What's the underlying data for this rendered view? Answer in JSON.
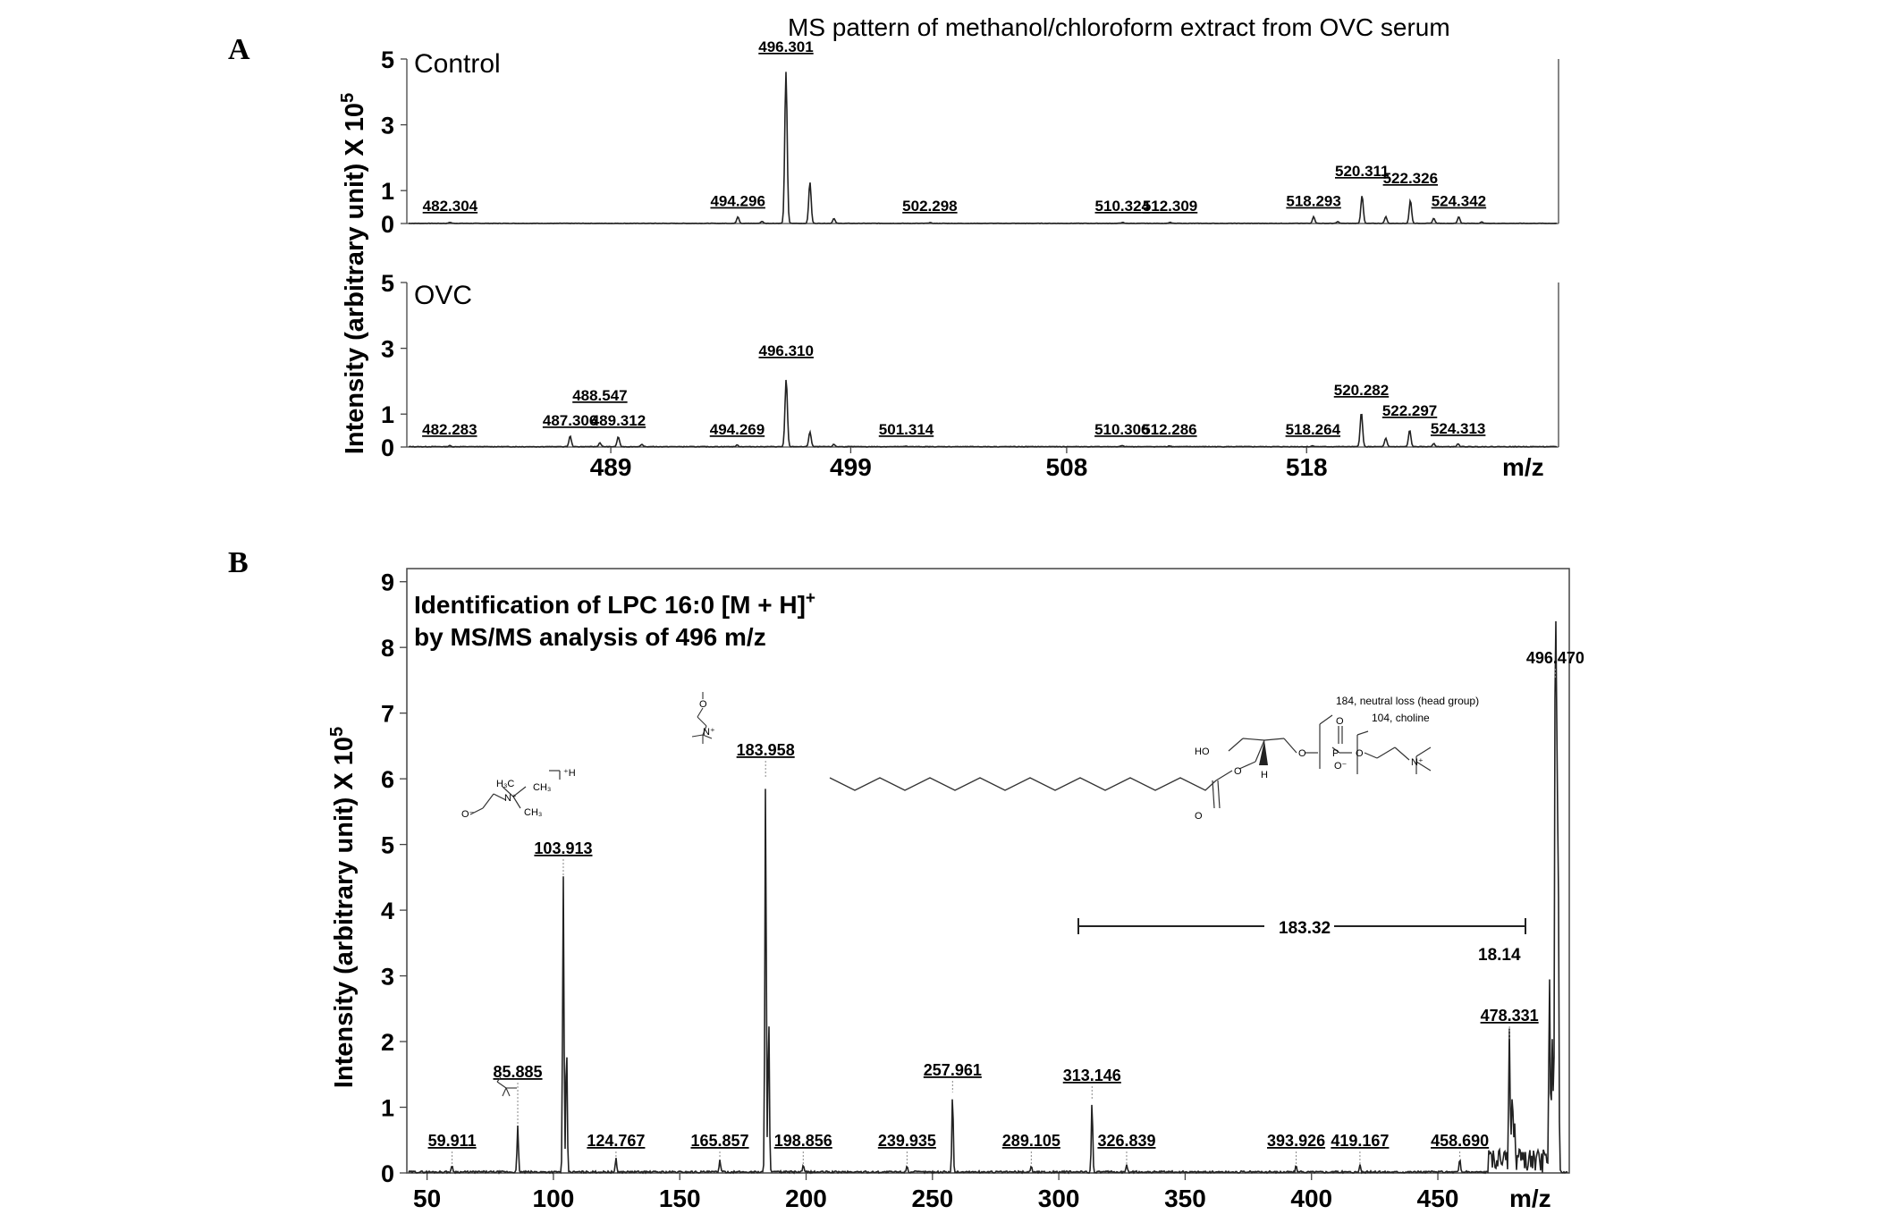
{
  "figure": {
    "panel_a_label": "A",
    "panel_b_label": "B"
  },
  "chart_data": [
    {
      "type": "line",
      "panel": "A",
      "title": "MS pattern of methanol/chloroform extract from OVC serum",
      "ylabel": "Intensity (arbitrary unit) X 10",
      "ylabel_sup": "5",
      "xlabel": "m/z",
      "xticks": [
        489,
        499,
        508,
        518
      ],
      "xlim": [
        480.5,
        528.5
      ],
      "ylim": [
        0,
        5
      ],
      "yticks_labels": [
        "5",
        "3",
        "1",
        "0"
      ],
      "ytick_values": [
        5,
        3,
        1,
        0
      ],
      "series": [
        {
          "name": "Control",
          "baseline_noise": 0.01,
          "peaks": [
            {
              "x": 482.304,
              "y": 0.03,
              "label": "482.304",
              "labeled": true
            },
            {
              "x": 494.296,
              "y": 0.2,
              "label": "494.296",
              "labeled": true
            },
            {
              "x": 495.3,
              "y": 0.06,
              "labeled": false
            },
            {
              "x": 496.301,
              "y": 4.6,
              "label": "496.301",
              "labeled": true
            },
            {
              "x": 497.3,
              "y": 1.25,
              "labeled": false
            },
            {
              "x": 498.3,
              "y": 0.15,
              "labeled": false
            },
            {
              "x": 502.298,
              "y": 0.02,
              "label": "502.298",
              "labeled": true
            },
            {
              "x": 510.324,
              "y": 0.03,
              "label": "510.324",
              "labeled": true
            },
            {
              "x": 512.309,
              "y": 0.03,
              "label": "512.309",
              "labeled": true
            },
            {
              "x": 518.293,
              "y": 0.2,
              "label": "518.293",
              "labeled": true
            },
            {
              "x": 519.3,
              "y": 0.05,
              "labeled": false
            },
            {
              "x": 520.311,
              "y": 0.85,
              "label": "520.311",
              "labeled": true
            },
            {
              "x": 521.3,
              "y": 0.2,
              "labeled": false
            },
            {
              "x": 522.326,
              "y": 0.7,
              "label": "522.326",
              "labeled": true
            },
            {
              "x": 523.3,
              "y": 0.15,
              "labeled": false
            },
            {
              "x": 524.342,
              "y": 0.2,
              "label": "524.342",
              "labeled": true
            },
            {
              "x": 525.3,
              "y": 0.04,
              "labeled": false
            }
          ]
        },
        {
          "name": "OVC",
          "baseline_noise": 0.02,
          "peaks": [
            {
              "x": 482.283,
              "y": 0.03,
              "label": "482.283",
              "labeled": true
            },
            {
              "x": 487.306,
              "y": 0.32,
              "label": "487.306",
              "labeled": true
            },
            {
              "x": 488.547,
              "y": 0.12,
              "label": "488.547",
              "labeled": true
            },
            {
              "x": 489.312,
              "y": 0.3,
              "label": "489.312",
              "labeled": true
            },
            {
              "x": 490.3,
              "y": 0.06,
              "labeled": false
            },
            {
              "x": 494.269,
              "y": 0.05,
              "label": "494.269",
              "labeled": true
            },
            {
              "x": 496.31,
              "y": 2.05,
              "label": "496.310",
              "labeled": true
            },
            {
              "x": 497.3,
              "y": 0.45,
              "labeled": false
            },
            {
              "x": 498.3,
              "y": 0.07,
              "labeled": false
            },
            {
              "x": 501.314,
              "y": 0.02,
              "label": "501.314",
              "labeled": true
            },
            {
              "x": 510.306,
              "y": 0.03,
              "label": "510.306",
              "labeled": true
            },
            {
              "x": 512.286,
              "y": 0.03,
              "label": "512.286",
              "labeled": true
            },
            {
              "x": 518.264,
              "y": 0.03,
              "label": "518.264",
              "labeled": true
            },
            {
              "x": 520.282,
              "y": 1.05,
              "label": "520.282",
              "labeled": true
            },
            {
              "x": 521.3,
              "y": 0.25,
              "labeled": false
            },
            {
              "x": 522.297,
              "y": 0.5,
              "label": "522.297",
              "labeled": true
            },
            {
              "x": 523.3,
              "y": 0.1,
              "labeled": false
            },
            {
              "x": 524.313,
              "y": 0.08,
              "label": "524.313",
              "labeled": true
            }
          ]
        }
      ]
    },
    {
      "type": "line",
      "panel": "B",
      "title_line1": "Identification of  LPC 16:0 [M + H]",
      "title_sup": "+",
      "title_line2": "by MS/MS analysis of 496 m/z",
      "ylabel": "Intensity (arbitrary unit) X 10",
      "ylabel_sup": "5",
      "xlabel": "m/z",
      "xticks": [
        50,
        100,
        150,
        200,
        250,
        300,
        350,
        400,
        450
      ],
      "xlim": [
        42,
        502
      ],
      "yticks": [
        0,
        1,
        2,
        3,
        4,
        5,
        6,
        7,
        8,
        9
      ],
      "ylim": [
        0,
        9.2
      ],
      "peaks": [
        {
          "x": 59.911,
          "y": 0.1,
          "label": "59.911",
          "labeled": true
        },
        {
          "x": 85.885,
          "y": 0.7,
          "label": "85.885",
          "labeled": true
        },
        {
          "x": 103.913,
          "y": 4.5,
          "label": "103.913",
          "labeled": true
        },
        {
          "x": 105.2,
          "y": 2.0,
          "labeled": false
        },
        {
          "x": 124.767,
          "y": 0.2,
          "label": "124.767",
          "labeled": true
        },
        {
          "x": 165.857,
          "y": 0.2,
          "label": "165.857",
          "labeled": true
        },
        {
          "x": 183.958,
          "y": 6.0,
          "label": "183.958",
          "labeled": true
        },
        {
          "x": 185.2,
          "y": 2.4,
          "labeled": false
        },
        {
          "x": 198.856,
          "y": 0.1,
          "label": "198.856",
          "labeled": true
        },
        {
          "x": 239.935,
          "y": 0.1,
          "label": "239.935",
          "labeled": true
        },
        {
          "x": 257.961,
          "y": 1.2,
          "label": "257.961",
          "labeled": true
        },
        {
          "x": 289.105,
          "y": 0.1,
          "label": "289.105",
          "labeled": true
        },
        {
          "x": 313.146,
          "y": 1.1,
          "label": "313.146",
          "labeled": true
        },
        {
          "x": 326.839,
          "y": 0.1,
          "label": "326.839",
          "labeled": true
        },
        {
          "x": 393.926,
          "y": 0.1,
          "label": "393.926",
          "labeled": true
        },
        {
          "x": 419.167,
          "y": 0.1,
          "label": "419.167",
          "labeled": true
        },
        {
          "x": 458.69,
          "y": 0.2,
          "label": "458.690",
          "labeled": true
        },
        {
          "x": 478.331,
          "y": 2.0,
          "label": "478.331",
          "labeled": true
        },
        {
          "x": 479.5,
          "y": 1.1,
          "labeled": false
        },
        {
          "x": 480.5,
          "y": 0.5,
          "labeled": false
        },
        {
          "x": 494.2,
          "y": 2.7,
          "labeled": false
        },
        {
          "x": 495.3,
          "y": 2.0,
          "labeled": false
        },
        {
          "x": 496.47,
          "y": 7.5,
          "label": "496.470",
          "labeled": true
        },
        {
          "x": 497.0,
          "y": 5.4,
          "labeled": false
        },
        {
          "x": 497.6,
          "y": 4.6,
          "labeled": false
        }
      ],
      "annotations": {
        "loss_183": {
          "label": "183.32",
          "x_from": 313.146,
          "x_to": 496.47,
          "y": 3.8
        },
        "loss_18": {
          "label": "18.14"
        }
      },
      "structures": {
        "frag_86_label": "",
        "lpc_labels": {
          "neutral_loss": "184, neutral loss (head group)",
          "choline": "104, choline",
          "ho": "HO",
          "h": "H",
          "o_plain": "O",
          "o_minus": "O⁻",
          "p": "P",
          "n_plus": "N⁺",
          "ch3": "CH₃",
          "h3c": "H₃C",
          "h_plus": "⁺H"
        }
      }
    }
  ]
}
